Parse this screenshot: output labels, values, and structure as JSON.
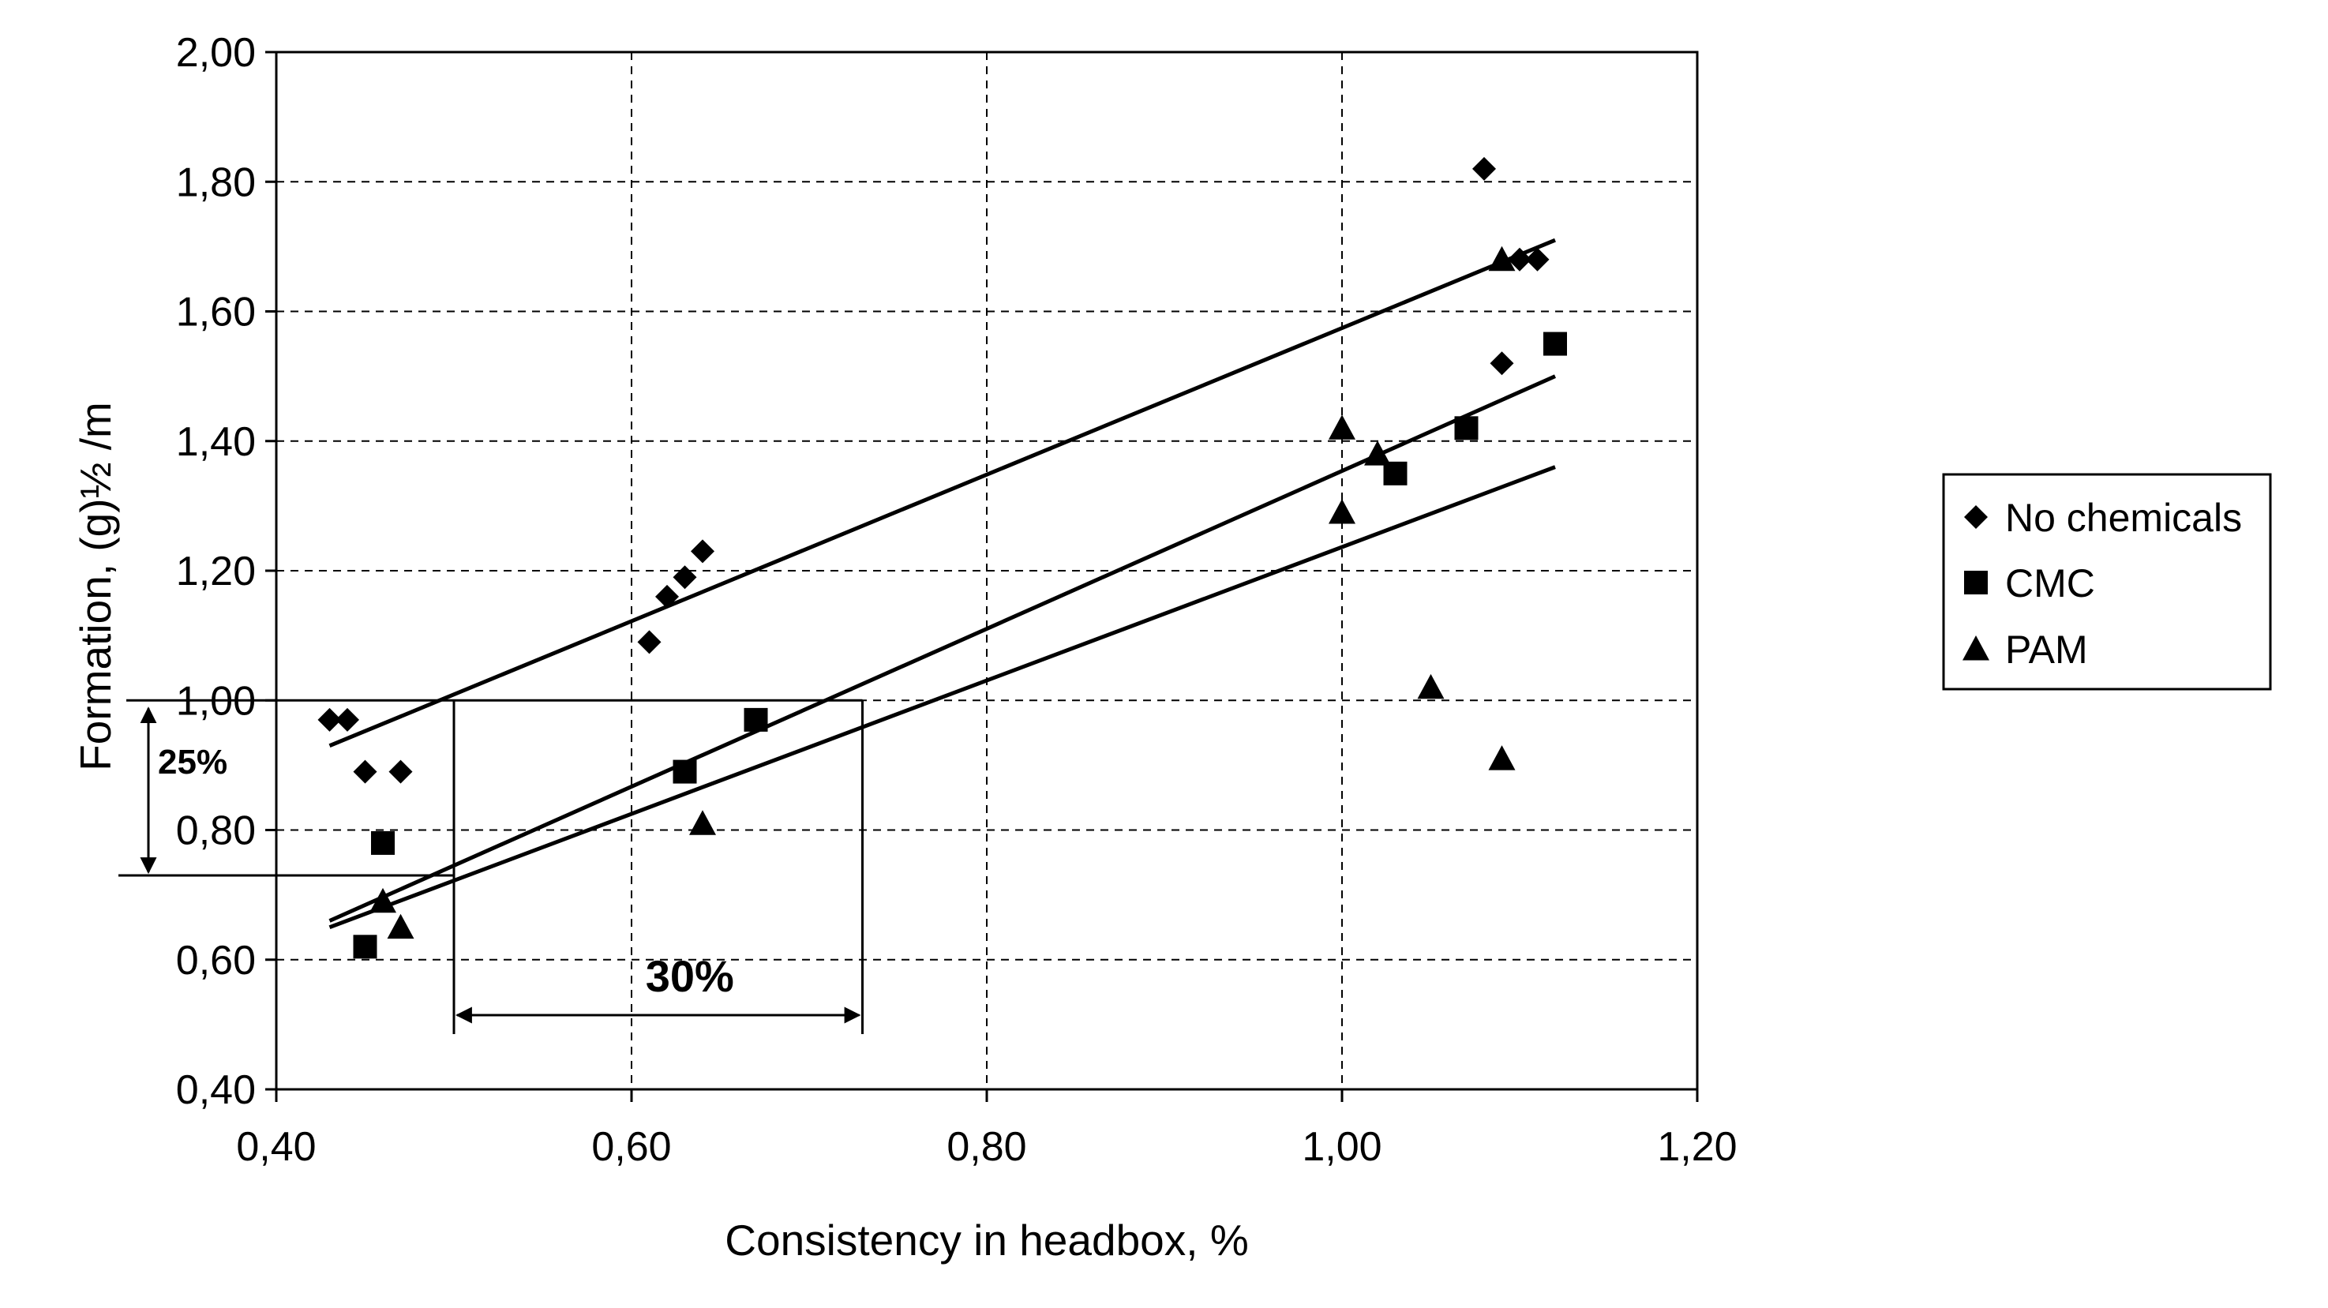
{
  "chart_data": {
    "type": "scatter",
    "title": "",
    "xlabel": "Consistency in headbox, %",
    "ylabel": "Formation, (g)½ /m",
    "xlim": [
      0.4,
      1.2
    ],
    "ylim": [
      0.4,
      2.0
    ],
    "x_ticks": [
      "0,40",
      "0,60",
      "0,80",
      "1,00",
      "1,20"
    ],
    "y_ticks": [
      "2,00",
      "1,80",
      "1,60",
      "1,40",
      "1,20",
      "1,00",
      "0,80",
      "0,60",
      "0,40"
    ],
    "grid": "dashed",
    "legend_position": "right",
    "series": [
      {
        "name": "No chemicals",
        "marker": "diamond",
        "points": [
          [
            0.43,
            0.97
          ],
          [
            0.44,
            0.97
          ],
          [
            0.45,
            0.89
          ],
          [
            0.47,
            0.89
          ],
          [
            0.61,
            1.09
          ],
          [
            0.62,
            1.16
          ],
          [
            0.63,
            1.19
          ],
          [
            0.64,
            1.23
          ],
          [
            1.08,
            1.82
          ],
          [
            1.09,
            1.52
          ],
          [
            1.1,
            1.68
          ],
          [
            1.11,
            1.68
          ]
        ],
        "trendline": [
          [
            0.43,
            0.93
          ],
          [
            1.12,
            1.71
          ]
        ]
      },
      {
        "name": "CMC",
        "marker": "square",
        "points": [
          [
            0.45,
            0.62
          ],
          [
            0.46,
            0.78
          ],
          [
            0.63,
            0.89
          ],
          [
            0.67,
            0.97
          ],
          [
            1.03,
            1.35
          ],
          [
            1.07,
            1.42
          ],
          [
            1.12,
            1.55
          ]
        ],
        "trendline": [
          [
            0.43,
            0.66
          ],
          [
            1.12,
            1.5
          ]
        ]
      },
      {
        "name": "PAM",
        "marker": "triangle",
        "points": [
          [
            0.46,
            0.69
          ],
          [
            0.47,
            0.65
          ],
          [
            0.64,
            0.81
          ],
          [
            1.0,
            1.29
          ],
          [
            1.0,
            1.42
          ],
          [
            1.02,
            1.38
          ],
          [
            1.05,
            1.02
          ],
          [
            1.09,
            0.91
          ],
          [
            1.09,
            1.68
          ]
        ],
        "trendline": [
          [
            0.43,
            0.65
          ],
          [
            1.12,
            1.36
          ]
        ]
      }
    ],
    "annotations": [
      {
        "text": "25%",
        "type": "vertical-range",
        "y_from": 0.73,
        "y_to": 1.0
      },
      {
        "text": "30%",
        "type": "horizontal-range",
        "x_from": 0.5,
        "x_to": 0.73
      },
      {
        "type": "guide-lines",
        "y_level": 1.0,
        "x_values": [
          0.5,
          0.73
        ]
      }
    ]
  }
}
